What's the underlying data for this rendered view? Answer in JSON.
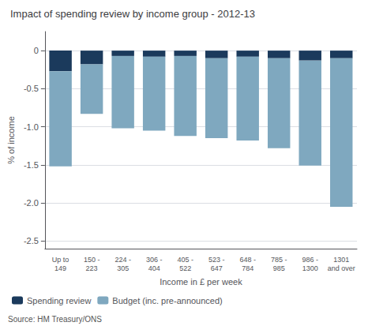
{
  "chart_data": {
    "type": "bar",
    "title": "Impact of spending review by income group - 2012-13",
    "ylabel": "% of income",
    "xlabel": "Income in £ per week",
    "annotations": [
      "Source: HM Treasury/ONS"
    ],
    "categories": [
      "Up to\n149",
      "150 -\n223",
      "224 -\n305",
      "306 -\n404",
      "405 -\n522",
      "523 -\n647",
      "648 -\n784",
      "785 -\n985",
      "986 -\n1300",
      "1301\nand over"
    ],
    "series": [
      {
        "name": "Spending review",
        "color": "#1b3a5c",
        "values": [
          -0.27,
          -0.18,
          -0.07,
          -0.08,
          -0.07,
          -0.1,
          -0.08,
          -0.1,
          -0.13,
          -0.1
        ]
      },
      {
        "name": "Budget (inc. pre-announced)",
        "color": "#7fa8bf",
        "values": [
          -1.25,
          -0.65,
          -0.95,
          -0.97,
          -1.05,
          -1.05,
          -1.1,
          -1.18,
          -1.38,
          -1.95
        ]
      }
    ],
    "stacked": true,
    "ylim": [
      -2.6,
      0.25
    ],
    "yticks": [
      0,
      -0.5,
      {
        "value": -1.0,
        "label": "-1.0"
      },
      -1.5,
      {
        "value": -2.0,
        "label": "-2.0"
      },
      -2.5
    ],
    "grid": true,
    "legend": "lower left"
  }
}
